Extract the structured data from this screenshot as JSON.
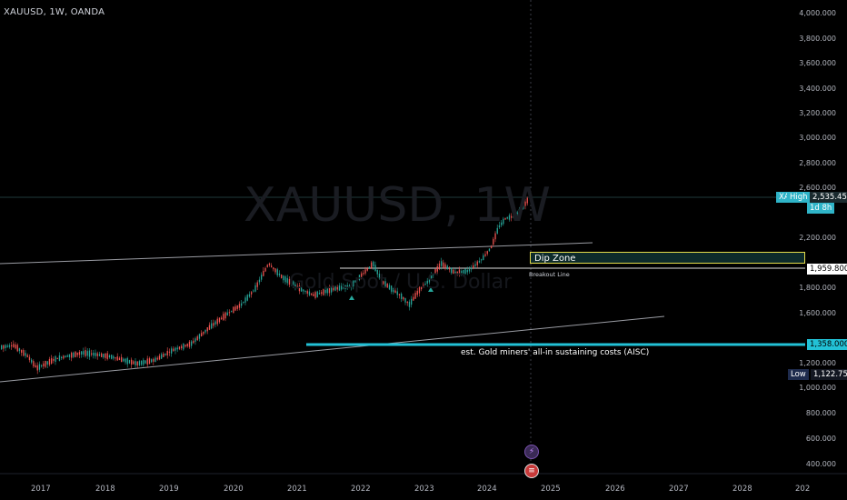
{
  "symbol_line": "XAUUSD, 1W, OANDA",
  "watermark": {
    "title": "XAUUSD, 1W",
    "subtitle": "Gold Spot / U.S. Dollar"
  },
  "price_axis": {
    "ticks": [
      "4,000.000",
      "3,800.000",
      "3,600.000",
      "3,400.000",
      "3,200.000",
      "3,000.000",
      "2,800.000",
      "2,600.000",
      "2,200.000",
      "1,800.000",
      "1,600.000",
      "1,200.000",
      "1,000.000",
      "800.000",
      "600.000",
      "400.000"
    ],
    "min": 400,
    "max": 4000
  },
  "time_axis": {
    "ticks": [
      "2017",
      "2018",
      "2019",
      "2020",
      "2021",
      "2022",
      "2023",
      "2024",
      "2025",
      "2026",
      "2027",
      "2028",
      "202"
    ]
  },
  "tags": {
    "high_prefix": "XA",
    "high_label": "High",
    "high_value": "2,535.450",
    "countdown": "1d 8h",
    "breakout_value": "1,959.800",
    "aisc_value": "1,358.000",
    "low_label": "Low",
    "low_value": "1,122.751"
  },
  "annotations": {
    "dip_zone": "Dip Zone",
    "breakout_line": "Breakout Line",
    "aisc": "est. Gold miners' all-in sustaining costs (AISC)"
  },
  "colors": {
    "up": "#26a69a",
    "down": "#ef5350",
    "aisc": "#22c1d6",
    "dip_border": "#e3dc4b",
    "high_tag": "#2fb4c8",
    "low_tag": "#1e2b4d"
  },
  "icons": [
    "lightning-icon",
    "us-flag-icon"
  ]
}
